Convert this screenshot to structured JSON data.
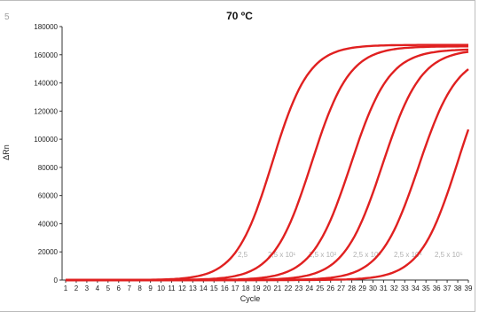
{
  "corner_label": "5",
  "chart_data": {
    "type": "line",
    "title": "70 ºC",
    "xlabel": "Cycle",
    "ylabel": "ΔRn",
    "x": [
      1,
      2,
      3,
      4,
      5,
      6,
      7,
      8,
      9,
      10,
      11,
      12,
      13,
      14,
      15,
      16,
      17,
      18,
      19,
      20,
      21,
      22,
      23,
      24,
      25,
      26,
      27,
      28,
      29,
      30,
      31,
      32,
      33,
      34,
      35,
      36,
      37,
      38,
      39
    ],
    "xlim": [
      1,
      39
    ],
    "ylim": [
      0,
      180000
    ],
    "yticks": [
      0,
      20000,
      40000,
      60000,
      80000,
      100000,
      120000,
      140000,
      160000,
      180000
    ],
    "grid": false,
    "legend": "none",
    "line_color": "#e02020",
    "series": [
      {
        "label": "2,5",
        "midpoint": 20.5,
        "plateau": 167000,
        "slope": 0.58
      },
      {
        "label": "2,5 x 10¹",
        "midpoint": 24.2,
        "plateau": 166000,
        "slope": 0.56
      },
      {
        "label": "2,5 x 10²",
        "midpoint": 27.9,
        "plateau": 164000,
        "slope": 0.55
      },
      {
        "label": "2,5 x 10³",
        "midpoint": 30.9,
        "plateau": 164000,
        "slope": 0.55
      },
      {
        "label": "2,5 x 10⁴",
        "midpoint": 34.3,
        "plateau": 161000,
        "slope": 0.55
      },
      {
        "label": "2,5 x 10⁵",
        "midpoint": 38.0,
        "plateau": 168000,
        "slope": 0.56
      }
    ],
    "annotations": [
      "2,5",
      "2,5 x 10¹",
      "2,5 x 10²",
      "2,5 x 10³",
      "2,5 x 10⁴",
      "2,5 x 10⁵"
    ]
  }
}
